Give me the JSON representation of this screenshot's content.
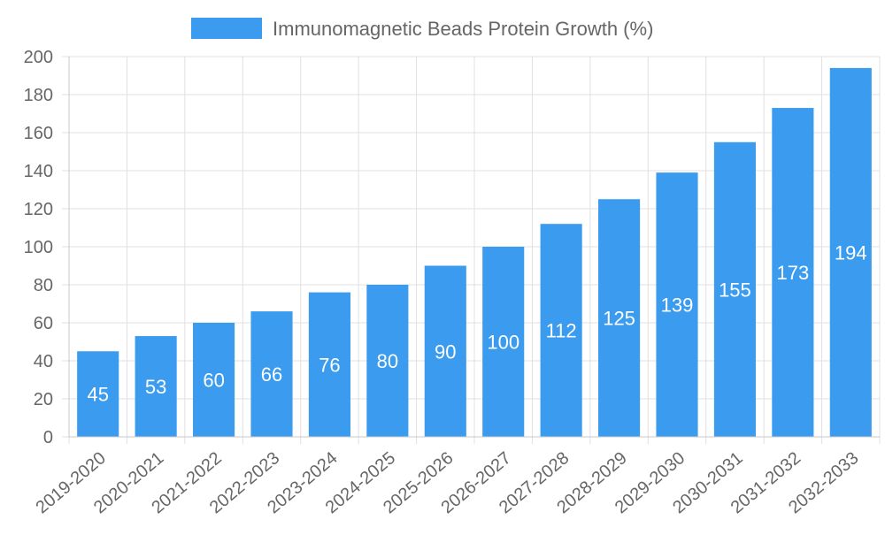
{
  "chart_data": {
    "type": "bar",
    "title": "",
    "xlabel": "",
    "ylabel": "",
    "legend": {
      "label": "Immunomagnetic Beads Protein Growth (%)",
      "placement": "top-center"
    },
    "categories": [
      "2019-2020",
      "2020-2021",
      "2021-2022",
      "2022-2023",
      "2023-2024",
      "2024-2025",
      "2025-2026",
      "2026-2027",
      "2027-2028",
      "2028-2029",
      "2029-2030",
      "2030-2031",
      "2031-2032",
      "2032-2033"
    ],
    "series": [
      {
        "name": "Immunomagnetic Beads Protein Growth (%)",
        "values": [
          45,
          53,
          60,
          66,
          76,
          80,
          90,
          100,
          112,
          125,
          139,
          155,
          173,
          194
        ]
      }
    ],
    "ylim": [
      0,
      200
    ],
    "yticks": [
      0,
      20,
      40,
      60,
      80,
      100,
      120,
      140,
      160,
      180,
      200
    ],
    "grid": true,
    "colors": {
      "bar": "#3a9bef",
      "grid": "#e0e0e0",
      "text": "#666666",
      "data_label": "#ffffff"
    }
  }
}
